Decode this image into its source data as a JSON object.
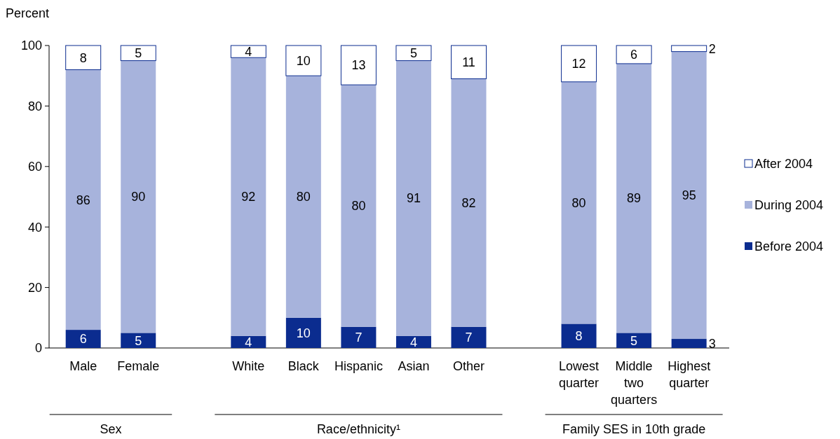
{
  "chart_data": {
    "type": "bar",
    "stacked": true,
    "ylabel": "Percent",
    "categories": [
      "Male",
      "Female",
      null,
      "White",
      "Black",
      "Hispanic",
      "Asian",
      "Other",
      null,
      "Lowest quarter",
      "Middle two quarters",
      "Highest quarter"
    ],
    "series": [
      {
        "name": "Before 2004",
        "color": "#0b2c8f",
        "values": [
          6,
          5,
          null,
          4,
          10,
          7,
          4,
          7,
          null,
          8,
          5,
          3
        ]
      },
      {
        "name": "During 2004",
        "color": "#a7b3dc",
        "values": [
          86,
          90,
          null,
          92,
          80,
          80,
          91,
          82,
          null,
          80,
          89,
          95
        ]
      },
      {
        "name": "After 2004",
        "color": "#ffffff",
        "values": [
          8,
          5,
          null,
          4,
          10,
          13,
          5,
          11,
          null,
          12,
          6,
          2
        ]
      }
    ],
    "ylim": [
      0,
      100
    ],
    "yticks": [
      0,
      20,
      40,
      60,
      80,
      100
    ],
    "grid": false,
    "legend": "right",
    "data_labels": true,
    "annotations": [
      "Sex",
      "Race/ethnicity¹",
      "Family SES in 10th grade"
    ]
  }
}
